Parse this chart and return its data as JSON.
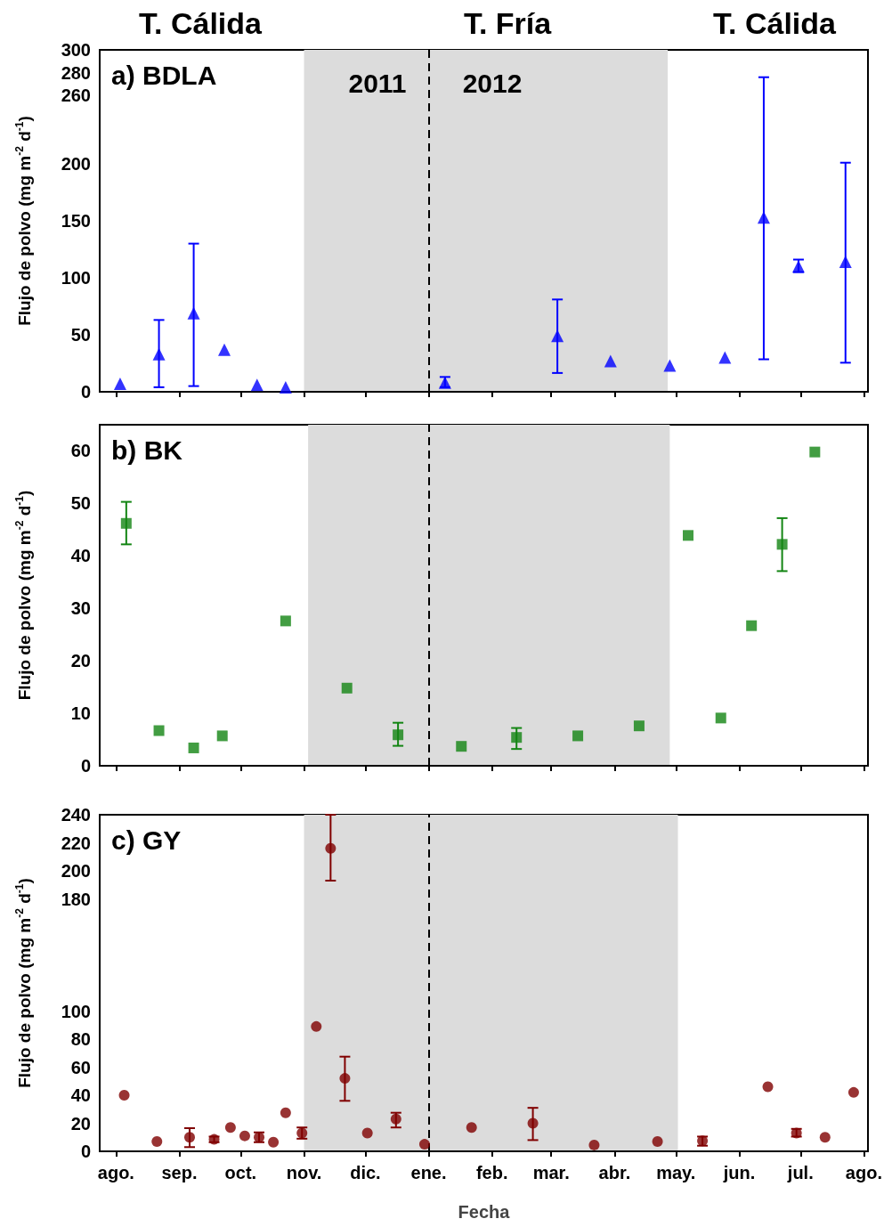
{
  "chart_data": [
    {
      "type": "scatter",
      "title": "a) BDLA",
      "ylabel": "Flujo de polvo (mg m$^{-2}$ d$^{-1}$)",
      "marker": "triangle",
      "grid": false,
      "tick_labels": "y",
      "xlim": [
        "2011-07-24",
        "2012-08-03"
      ],
      "xticks": [
        {
          "value": "2011-08-01",
          "label": null
        },
        {
          "value": "2011-09-01",
          "label": null
        },
        {
          "value": "2011-10-01",
          "label": null
        },
        {
          "value": "2011-11-01",
          "label": null
        },
        {
          "value": "2011-12-01",
          "label": null
        },
        {
          "value": "2012-01-01",
          "label": null
        },
        {
          "value": "2012-02-01",
          "label": null
        },
        {
          "value": "2012-03-01",
          "label": null
        },
        {
          "value": "2012-04-01",
          "label": null
        },
        {
          "value": "2012-05-01",
          "label": null
        },
        {
          "value": "2012-06-01",
          "label": null
        },
        {
          "value": "2012-07-01",
          "label": null
        },
        {
          "value": "2012-08-01",
          "label": null
        }
      ],
      "ylim": [
        0,
        300
      ],
      "yticks": [
        0,
        50,
        100,
        150,
        200,
        260,
        280,
        300
      ],
      "bands": [
        {
          "axis": "x",
          "from": "2011-11-01",
          "to": "2012-04-27",
          "color": "#dcdcdc"
        }
      ],
      "ref_lines": [
        {
          "axis": "x",
          "value": "2012-01-01",
          "label": null,
          "color": "#000000",
          "line_style": "dashed"
        }
      ],
      "annotations": [
        "T. Cálida",
        "T. Fría",
        "T. Cálida",
        "2011",
        "2012"
      ],
      "series": [
        {
          "color": "#0000ff",
          "x": [
            "2011-08-03",
            "2011-08-22",
            "2011-09-08",
            "2011-09-23",
            "2011-10-09",
            "2011-10-23",
            "2012-01-09",
            "2012-03-04",
            "2012-03-30",
            "2012-04-28",
            "2012-05-25",
            "2012-06-13",
            "2012-06-30",
            "2012-07-23"
          ],
          "values": [
            7,
            33,
            69,
            37,
            6,
            4,
            8,
            49,
            27,
            23,
            30,
            153,
            110,
            114
          ],
          "errors": [
            null,
            [
              4,
              63
            ],
            [
              5,
              130
            ],
            null,
            null,
            null,
            [
              4,
              13
            ],
            [
              16.5,
              81
            ],
            null,
            null,
            null,
            [
              28.5,
              276
            ],
            [
              105,
              116
            ],
            [
              25.5,
              201
            ]
          ]
        }
      ]
    },
    {
      "type": "scatter",
      "title": "b) BK",
      "ylabel": "Flujo de polvo (mg m$^{-2}$ d$^{-1}$)",
      "marker": "square",
      "grid": false,
      "tick_labels": "y",
      "xlim": [
        "2011-07-24",
        "2012-08-03"
      ],
      "xticks": [
        {
          "value": "2011-08-01",
          "label": null
        },
        {
          "value": "2011-09-01",
          "label": null
        },
        {
          "value": "2011-10-01",
          "label": null
        },
        {
          "value": "2011-11-01",
          "label": null
        },
        {
          "value": "2011-12-01",
          "label": null
        },
        {
          "value": "2012-01-01",
          "label": null
        },
        {
          "value": "2012-02-01",
          "label": null
        },
        {
          "value": "2012-03-01",
          "label": null
        },
        {
          "value": "2012-04-01",
          "label": null
        },
        {
          "value": "2012-05-01",
          "label": null
        },
        {
          "value": "2012-06-01",
          "label": null
        },
        {
          "value": "2012-07-01",
          "label": null
        },
        {
          "value": "2012-08-01",
          "label": null
        }
      ],
      "ylim": [
        0,
        65
      ],
      "yticks": [
        0,
        10,
        20,
        30,
        40,
        50,
        60
      ],
      "bands": [
        {
          "axis": "x",
          "from": "2011-11-03",
          "to": "2012-04-28",
          "color": "#dcdcdc"
        }
      ],
      "ref_lines": [
        {
          "axis": "x",
          "value": "2012-01-01",
          "label": null,
          "color": "#000000",
          "line_style": "dashed"
        }
      ],
      "series": [
        {
          "color": "#138513",
          "x": [
            "2011-08-06",
            "2011-08-22",
            "2011-09-08",
            "2011-09-22",
            "2011-10-23",
            "2011-11-22",
            "2011-12-17",
            "2012-01-17",
            "2012-02-13",
            "2012-03-14",
            "2012-04-13",
            "2012-05-07",
            "2012-05-23",
            "2012-06-07",
            "2012-06-22",
            "2012-07-08"
          ],
          "values": [
            46.2,
            6.7,
            3.4,
            5.7,
            27.6,
            14.8,
            5.9,
            3.7,
            5.4,
            5.7,
            7.6,
            43.9,
            9.1,
            26.7,
            42.2,
            59.8
          ],
          "errors": [
            [
              42.2,
              50.3
            ],
            null,
            null,
            null,
            null,
            null,
            [
              3.8,
              8.2
            ],
            null,
            [
              3.2,
              7.2
            ],
            null,
            null,
            null,
            null,
            null,
            [
              37.1,
              47.2
            ],
            null
          ]
        }
      ]
    },
    {
      "type": "scatter",
      "title": "c) GY",
      "ylabel": "Flujo de polvo (mg m$^{-2}$ d$^{-1}$)",
      "xlabel": "Fecha",
      "marker": "circle",
      "grid": false,
      "xlim": [
        "2011-07-24",
        "2012-08-03"
      ],
      "xticks": [
        {
          "value": "2011-08-01",
          "label": "ago."
        },
        {
          "value": "2011-09-01",
          "label": "sep."
        },
        {
          "value": "2011-10-01",
          "label": "oct."
        },
        {
          "value": "2011-11-01",
          "label": "nov."
        },
        {
          "value": "2011-12-01",
          "label": "dic."
        },
        {
          "value": "2012-01-01",
          "label": "ene."
        },
        {
          "value": "2012-02-01",
          "label": "feb."
        },
        {
          "value": "2012-03-01",
          "label": "mar."
        },
        {
          "value": "2012-04-01",
          "label": "abr."
        },
        {
          "value": "2012-05-01",
          "label": "may."
        },
        {
          "value": "2012-06-01",
          "label": "jun."
        },
        {
          "value": "2012-07-01",
          "label": "jul."
        },
        {
          "value": "2012-08-01",
          "label": "ago."
        }
      ],
      "ylim": [
        0,
        240
      ],
      "yticks": [
        0,
        20,
        40,
        60,
        80,
        100,
        180,
        200,
        220,
        240
      ],
      "bands": [
        {
          "axis": "x",
          "from": "2011-11-01",
          "to": "2012-05-02",
          "color": "#dcdcdc"
        }
      ],
      "ref_lines": [
        {
          "axis": "x",
          "value": "2012-01-01",
          "label": null,
          "color": "#000000",
          "line_style": "dashed"
        }
      ],
      "series": [
        {
          "color": "#800000",
          "x": [
            "2011-08-05",
            "2011-08-21",
            "2011-09-06",
            "2011-09-18",
            "2011-09-26",
            "2011-10-03",
            "2011-10-10",
            "2011-10-17",
            "2011-10-23",
            "2011-10-31",
            "2011-11-07",
            "2011-11-14",
            "2011-11-21",
            "2011-12-02",
            "2011-12-16",
            "2011-12-30",
            "2012-01-22",
            "2012-02-21",
            "2012-03-22",
            "2012-04-22",
            "2012-05-14",
            "2012-06-15",
            "2012-06-29",
            "2012-07-13",
            "2012-07-27"
          ],
          "values": [
            40,
            7,
            10,
            8.5,
            17,
            11,
            10,
            6.5,
            27.5,
            13,
            89,
            216,
            52,
            13,
            23,
            5,
            17,
            20,
            4.5,
            7,
            7.5,
            46,
            13,
            10,
            42
          ],
          "errors": [
            null,
            null,
            [
              3,
              16.5
            ],
            [
              6.5,
              10.5
            ],
            null,
            null,
            [
              6.5,
              13.5
            ],
            null,
            null,
            [
              9,
              17
            ],
            null,
            [
              193,
              240
            ],
            [
              36,
              67.5
            ],
            null,
            [
              17,
              27.5
            ],
            null,
            null,
            [
              8,
              31
            ],
            null,
            null,
            [
              4,
              10.5
            ],
            null,
            [
              10.5,
              16
            ],
            null,
            null
          ]
        }
      ]
    }
  ]
}
